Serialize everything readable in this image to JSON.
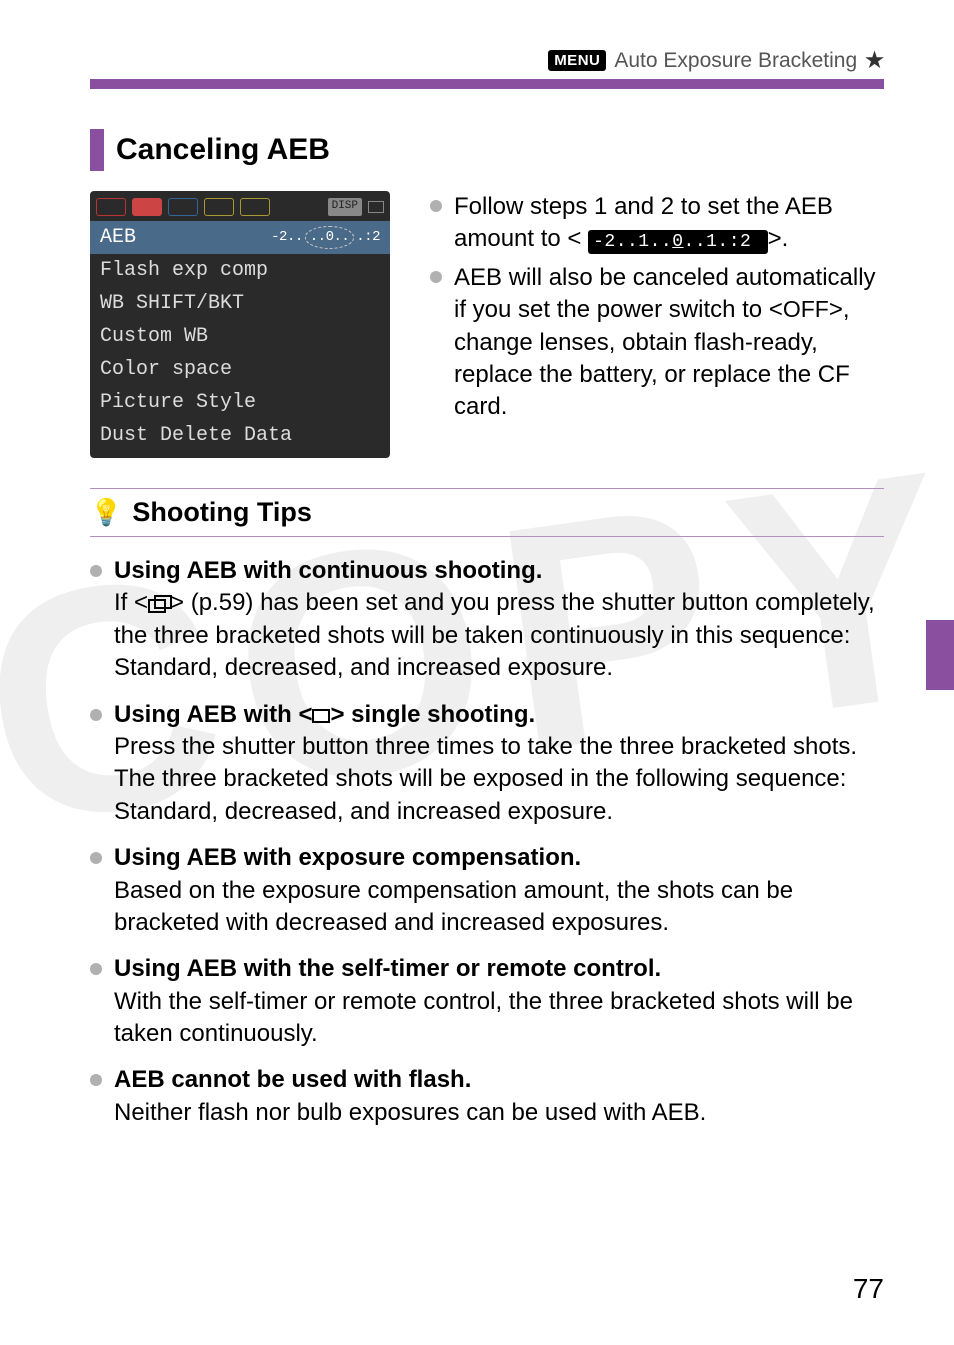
{
  "header": {
    "menu_badge": "MENU",
    "header_text": "Auto Exposure Bracketing",
    "star": "★"
  },
  "section": {
    "title": "Canceling AEB"
  },
  "lcd": {
    "disp": "DISP",
    "row_hl_label": "AEB",
    "row_hl_scale_left": "-2..",
    "row_hl_scale_mid": "..0..",
    "row_hl_scale_right": ".:2",
    "rows": [
      "Flash exp comp",
      "WB SHIFT/BKT",
      "Custom WB",
      "Color space",
      "Picture Style",
      "Dust Delete Data"
    ]
  },
  "right_bullets": {
    "b1_pre": "Follow steps 1 and 2 to set the AEB amount to <",
    "b1_black_pre": "-2..1..",
    "b1_black_mid": "0",
    "b1_black_post": "..1.:2",
    "b1_post": ">.",
    "b2_a": "AEB will also be canceled automatically if you set the power switch to <",
    "b2_off": "OFF",
    "b2_b": ">, change lenses, obtain flash-ready, replace the battery, or replace the CF card."
  },
  "tips": {
    "title": "Shooting Tips",
    "items": [
      {
        "heading": "Using AEB with continuous shooting.",
        "pre": "If <",
        "mid": "> (p.59) has been set and you press the shutter button completely, the three bracketed shots will be taken continuously in this sequence: Standard, decreased, and increased exposure.",
        "glyph": "burst"
      },
      {
        "heading_pre": "Using AEB with <",
        "heading_post": "> single shooting.",
        "text": "Press the shutter button three times to take the three bracketed shots. The three bracketed shots will be exposed in the following sequence: Standard, decreased, and increased exposure.",
        "glyph": "box"
      },
      {
        "heading": "Using AEB with exposure compensation.",
        "text": "Based on the exposure compensation amount, the shots can be bracketed with decreased and increased exposures."
      },
      {
        "heading": "Using AEB with the self-timer or remote control.",
        "text": "With the self-timer or remote control, the three bracketed shots will be taken continuously."
      },
      {
        "heading": "AEB cannot be used with flash.",
        "text": "Neither flash nor bulb exposures can be used with AEB."
      }
    ]
  },
  "page_number": "77"
}
